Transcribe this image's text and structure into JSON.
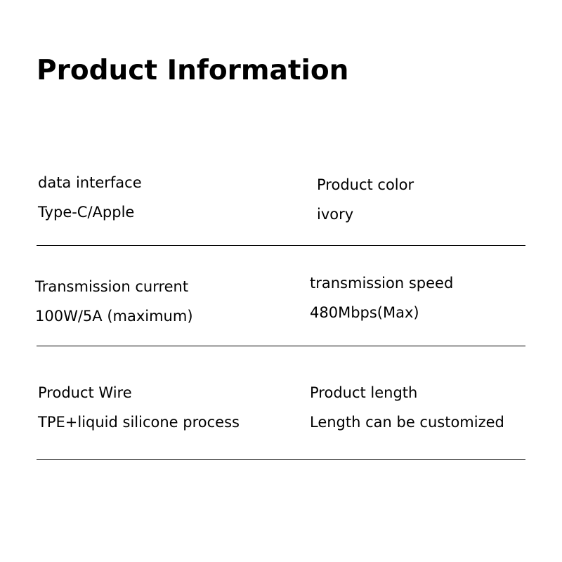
{
  "title": "Product Information",
  "specs": [
    {
      "label": "data interface",
      "value": "Type-C/Apple"
    },
    {
      "label": "Product color",
      "value": "ivory"
    },
    {
      "label": "Transmission current",
      "value": "100W/5A (maximum)"
    },
    {
      "label": "transmission speed",
      "value": "480Mbps(Max)"
    },
    {
      "label": "Product Wire",
      "value": "TPE+liquid silicone process"
    },
    {
      "label": "Product length",
      "value": "Length can be customized"
    }
  ]
}
